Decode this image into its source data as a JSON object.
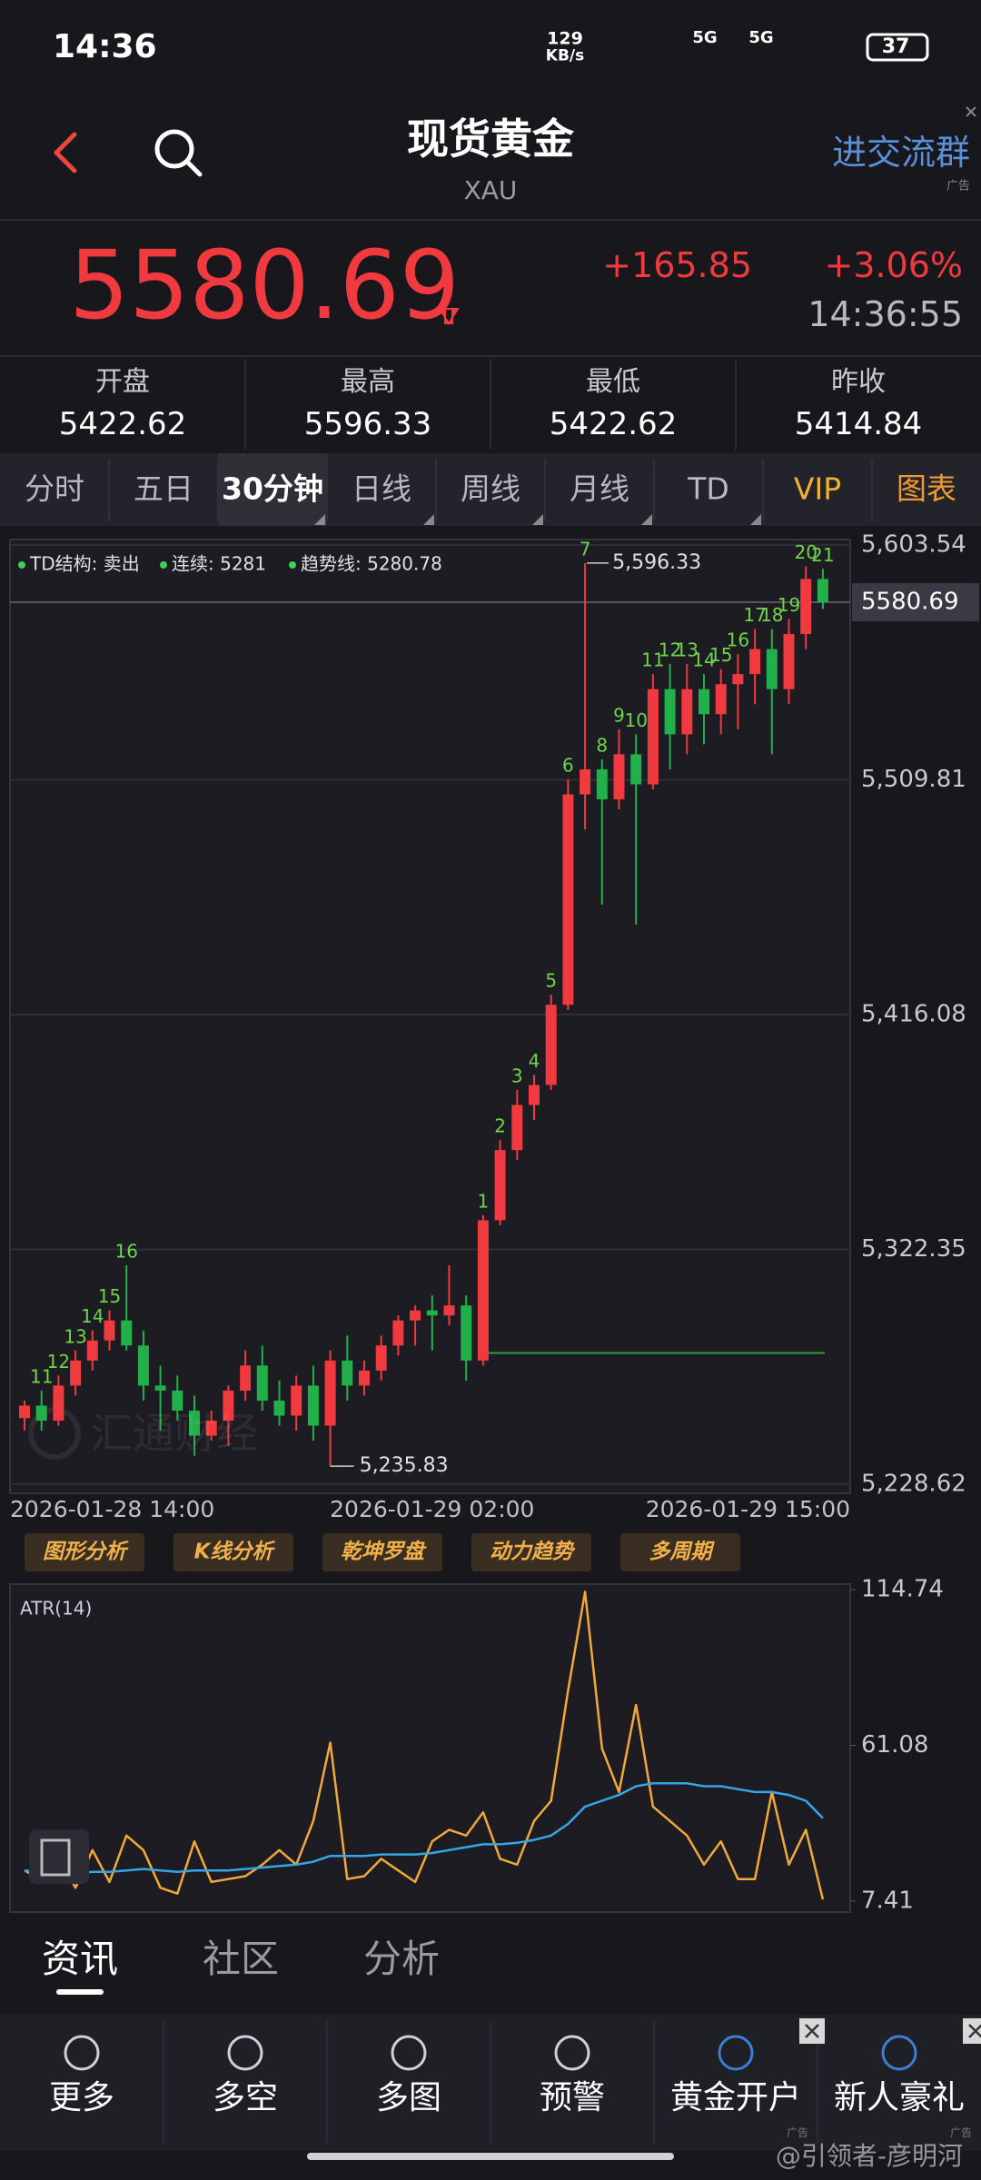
{
  "status_bar": {
    "time": "14:36",
    "speed": "129",
    "speed_unit": "KB/s",
    "net1": "5G",
    "net2": "5G",
    "battery": "37"
  },
  "header": {
    "title": "现货黄金",
    "subtitle": "XAU",
    "group": "进交流群",
    "ad": "广告"
  },
  "quote": {
    "price": "5580.69",
    "change": "+165.85",
    "change_pct": "+3.06%",
    "time": "14:36:55"
  },
  "stats": [
    {
      "label": "开盘",
      "value": "5422.62"
    },
    {
      "label": "最高",
      "value": "5596.33"
    },
    {
      "label": "最低",
      "value": "5422.62"
    },
    {
      "label": "昨收",
      "value": "5414.84"
    }
  ],
  "tabs": [
    "分时",
    "五日",
    "30分钟",
    "日线",
    "周线",
    "月线",
    "TD",
    "VIP",
    "图表"
  ],
  "chart_data": [
    {
      "type": "candlestick",
      "legend": [
        "TD结构: 卖出",
        "连续: 5281",
        "趋势线: 5280.78"
      ],
      "categories": [
        "2026-01-28 14:00",
        null,
        null,
        null,
        null,
        null,
        null,
        null,
        null,
        null,
        null,
        null,
        null,
        null,
        null,
        null,
        null,
        null,
        null,
        null,
        null,
        null,
        null,
        null,
        "2026-01-29 02:00",
        null,
        null,
        null,
        null,
        null,
        null,
        null,
        null,
        null,
        null,
        null,
        null,
        null,
        null,
        null,
        null,
        null,
        null,
        null,
        null,
        null,
        null,
        "2026-01-29 15:00"
      ],
      "open": [
        5255,
        5260,
        5254,
        5268,
        5278,
        5286,
        5294,
        5284,
        5268,
        5266,
        5258,
        5248,
        5254,
        5266,
        5276,
        5262,
        5256,
        5268,
        5252,
        5278,
        5268,
        5274,
        5284,
        5294,
        5298,
        5296,
        5300,
        5278,
        5334,
        5362,
        5380,
        5388,
        5420,
        5504,
        5514,
        5502,
        5520,
        5508,
        5546,
        5528,
        5546,
        5536,
        5548,
        5552,
        5562,
        5546,
        5568,
        5590
      ],
      "high": [
        5262,
        5266,
        5272,
        5282,
        5290,
        5298,
        5316,
        5290,
        5276,
        5272,
        5264,
        5258,
        5268,
        5282,
        5284,
        5270,
        5272,
        5276,
        5282,
        5288,
        5278,
        5288,
        5296,
        5300,
        5304,
        5316,
        5304,
        5336,
        5366,
        5386,
        5392,
        5424,
        5510,
        5596.33,
        5518,
        5530,
        5528,
        5552,
        5556,
        5556,
        5552,
        5554,
        5560,
        5570,
        5570,
        5574,
        5595,
        5594
      ],
      "low": [
        5250,
        5250,
        5252,
        5264,
        5274,
        5282,
        5282,
        5262,
        5250,
        5254,
        5240,
        5246,
        5244,
        5262,
        5258,
        5252,
        5250,
        5246,
        5235.83,
        5262,
        5264,
        5270,
        5280,
        5284,
        5282,
        5292,
        5270,
        5276,
        5332,
        5358,
        5374,
        5386,
        5418,
        5490,
        5460,
        5498,
        5452,
        5506,
        5514,
        5520,
        5524,
        5528,
        5530,
        5540,
        5520,
        5540,
        5562,
        5578
      ],
      "close": [
        5260,
        5254,
        5268,
        5278,
        5286,
        5294,
        5284,
        5268,
        5266,
        5258,
        5248,
        5254,
        5266,
        5276,
        5262,
        5256,
        5268,
        5252,
        5278,
        5268,
        5274,
        5284,
        5294,
        5298,
        5296,
        5300,
        5278,
        5334,
        5362,
        5380,
        5388,
        5420,
        5504,
        5514,
        5502,
        5520,
        5508,
        5546,
        5528,
        5546,
        5536,
        5548,
        5552,
        5562,
        5546,
        5568,
        5590,
        5580.69
      ],
      "td_labels": [
        null,
        "11",
        "12",
        "13",
        "14",
        "15",
        "16",
        null,
        null,
        null,
        null,
        null,
        null,
        null,
        null,
        null,
        null,
        null,
        null,
        null,
        null,
        null,
        null,
        null,
        null,
        null,
        null,
        "1",
        "2",
        "3",
        "4",
        "5",
        "6",
        "7",
        "8",
        "9",
        "10",
        "11",
        "12",
        "13",
        "14",
        "15",
        "16",
        "17",
        "18",
        "19",
        "20",
        "21"
      ],
      "high_labels": [
        null,
        null,
        null,
        null,
        null,
        null,
        null,
        null,
        null,
        null,
        null,
        null,
        null,
        null,
        null,
        null,
        null,
        null,
        null,
        null,
        null,
        null,
        null,
        null,
        null,
        null,
        null,
        null,
        null,
        null,
        null,
        null,
        null,
        "5,596.33",
        null,
        null,
        null,
        null,
        null,
        null,
        null,
        null,
        null,
        null,
        null,
        null,
        null,
        null
      ],
      "low_labels": [
        null,
        null,
        null,
        null,
        null,
        null,
        null,
        null,
        null,
        null,
        null,
        null,
        null,
        null,
        null,
        null,
        null,
        null,
        "5,235.83",
        null,
        null,
        null,
        null,
        null,
        null,
        null,
        null,
        null,
        null,
        null,
        null,
        null,
        null,
        null,
        null,
        null,
        null,
        null,
        null,
        null,
        null,
        null,
        null,
        null,
        null,
        null,
        null,
        null
      ],
      "up_color": "#f03a3f",
      "down_color": "#22b04b",
      "td_color": "#6fd44a",
      "level_line": 5281,
      "last_price": 5580.69,
      "ylim": [
        5228.62,
        5603.54
      ],
      "yticks": [
        {
          "value": 5603.54,
          "label": "5,603.54"
        },
        {
          "value": 5509.81,
          "label": "5,509.81"
        },
        {
          "value": 5416.08,
          "label": "5,416.08"
        },
        {
          "value": 5322.35,
          "label": "5,322.35"
        },
        {
          "value": 5228.62,
          "label": "5,228.62"
        }
      ],
      "grid": true
    },
    {
      "type": "line",
      "title": "ATR(14)",
      "series": [
        {
          "color": "#f2a93b",
          "values": [
            18,
            15,
            22,
            12,
            25,
            14,
            30,
            25,
            12,
            10,
            28,
            14,
            15,
            16,
            20,
            25,
            20,
            35,
            62,
            15,
            16,
            22,
            18,
            14,
            28,
            32,
            30,
            38,
            22,
            20,
            35,
            42,
            80,
            114,
            60,
            45,
            75,
            40,
            35,
            30,
            20,
            28,
            15,
            15,
            45,
            20,
            32,
            8
          ]
        },
        {
          "color": "#35a7e6",
          "values": [
            18,
            17.5,
            17.5,
            17,
            17.5,
            17.5,
            18,
            18.5,
            18,
            17.5,
            18,
            18,
            18,
            18.5,
            19,
            19.5,
            20,
            21,
            23,
            23,
            23,
            23.5,
            23.5,
            23.5,
            24,
            25,
            26,
            27,
            27,
            27.5,
            28.5,
            30,
            34,
            40,
            42,
            44,
            47,
            48,
            48,
            48,
            47,
            47,
            46,
            45,
            45,
            44,
            42,
            36
          ]
        }
      ],
      "ylim": [
        7.41,
        114.74
      ],
      "yticks": [
        114.74,
        61.08,
        7.41
      ]
    }
  ],
  "tool_buttons": [
    "图形分析",
    "K线分析",
    "乾坤罗盘",
    "动力趋势",
    "多周期"
  ],
  "section_tabs": [
    "资讯",
    "社区",
    "分析"
  ],
  "nav": [
    {
      "label": "更多"
    },
    {
      "label": "多空"
    },
    {
      "label": "多图"
    },
    {
      "label": "预警"
    },
    {
      "label": "黄金开户",
      "ad": "广告"
    },
    {
      "label": "新人豪礼",
      "ad": "广告"
    }
  ],
  "watermark": "汇通财经",
  "credit": "@引领者-彦明河"
}
